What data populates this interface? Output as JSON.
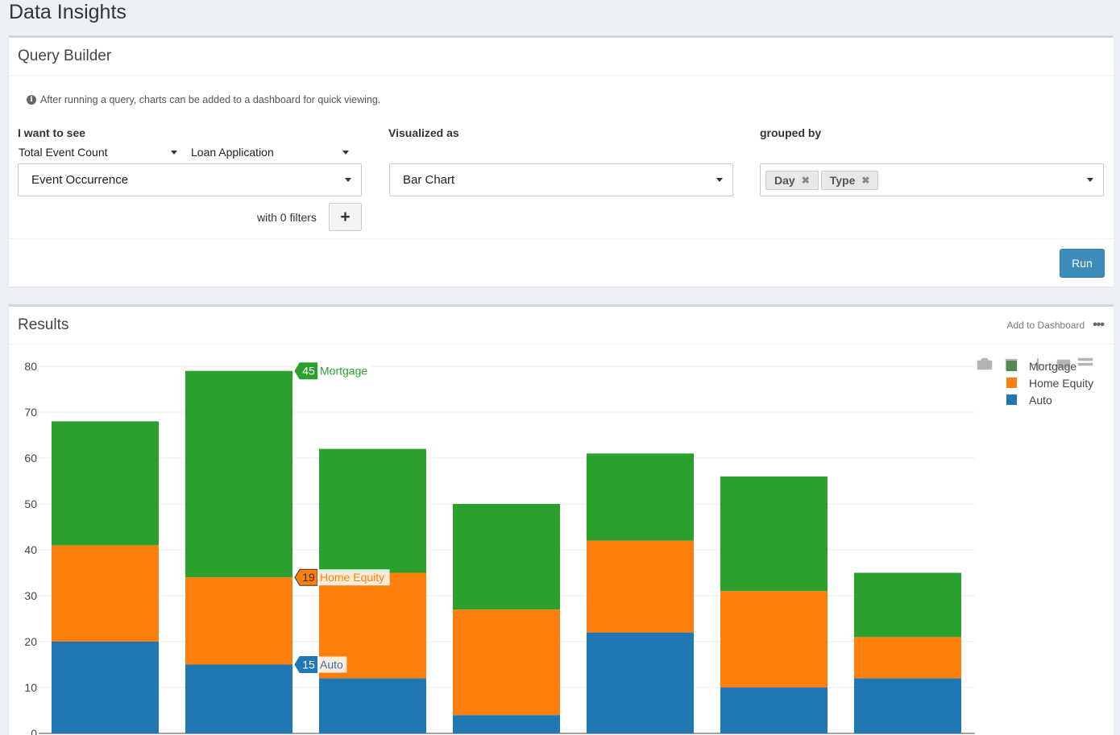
{
  "page_title": "Data Insights",
  "query_builder": {
    "title": "Query Builder",
    "info_text": "After running a query, charts can be added to a dashboard for quick viewing.",
    "i_want_to_see": {
      "label": "I want to see",
      "metric": "Total Event Count",
      "entity": "Loan Application",
      "field": "Event Occurrence"
    },
    "visualized_as": {
      "label": "Visualized as",
      "value": "Bar Chart"
    },
    "grouped_by": {
      "label": "grouped by",
      "tags": [
        "Day",
        "Type"
      ]
    },
    "filters_text": "with 0 filters",
    "add_filter_icon": "plus-icon",
    "run_label": "Run"
  },
  "results": {
    "title": "Results",
    "add_to_dashboard": "Add to Dashboard",
    "more_icon": "ellipsis-icon",
    "modebar_icons": [
      "camera-icon",
      "zoom-icon",
      "pan-icon",
      "select-icon",
      "autoscale-icon"
    ]
  },
  "colors": {
    "mortgage": "#2ca02c",
    "home_equity": "#ff7f0e",
    "auto": "#1f77b4",
    "accent": "#3c8dbc"
  },
  "chart_data": {
    "type": "bar",
    "stacked": true,
    "ylim": [
      0,
      80
    ],
    "yticks": [
      0,
      10,
      20,
      30,
      40,
      50,
      60,
      70,
      80
    ],
    "grid": true,
    "legend_position": "top-right",
    "series": [
      {
        "name": "Auto",
        "color": "#1f77b4",
        "values": [
          20,
          15,
          12,
          4,
          22,
          10,
          12
        ]
      },
      {
        "name": "Home Equity",
        "color": "#ff7f0e",
        "values": [
          21,
          19,
          23,
          23,
          20,
          21,
          9
        ]
      },
      {
        "name": "Mortgage",
        "color": "#2ca02c",
        "values": [
          27,
          45,
          27,
          23,
          19,
          25,
          14
        ]
      }
    ],
    "hover": {
      "bar_index": 1,
      "labels": [
        {
          "series": "Mortgage",
          "value": "45",
          "text": "Mortgage"
        },
        {
          "series": "Home Equity",
          "value": "19",
          "text": "Home Equity"
        },
        {
          "series": "Auto",
          "value": "15",
          "text": "Auto"
        }
      ]
    }
  }
}
